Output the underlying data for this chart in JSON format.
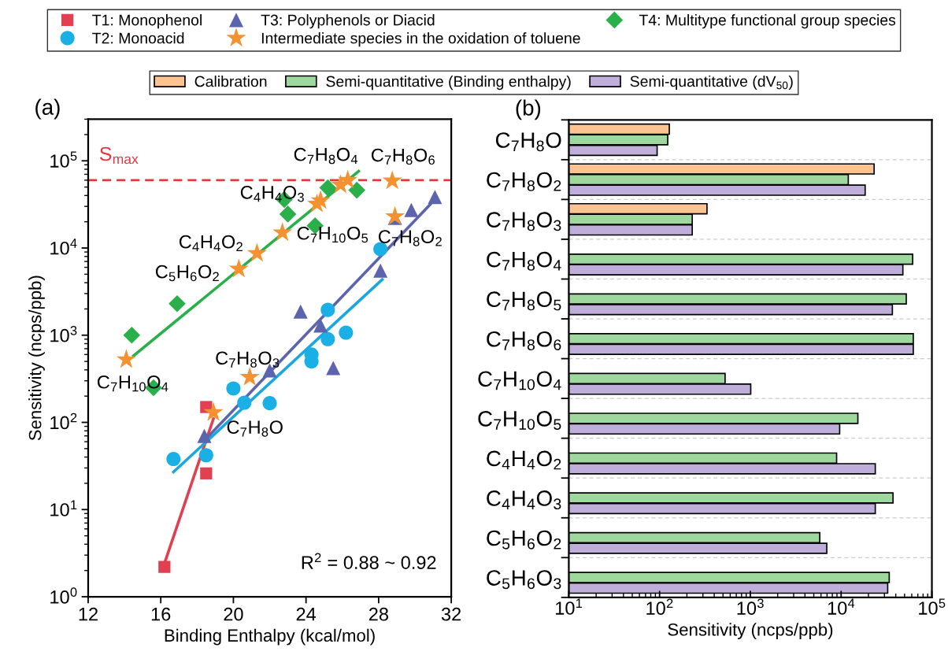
{
  "chart_data": [
    {
      "type": "scatter",
      "title": "(a)",
      "xlabel": "Binding Enthalpy (kcal/mol)",
      "ylabel": "Sensitivity (ncps/ppb)",
      "log": "y",
      "legend": "top",
      "xlim": [
        12,
        32
      ],
      "xticks": [
        12,
        16,
        20,
        24,
        28,
        32
      ],
      "ylim": [
        1,
        300000
      ],
      "yticks": [
        {
          "value": 1,
          "label": "10$^{0}$"
        },
        {
          "value": 10,
          "label": "10$^{1}$"
        },
        {
          "value": 100,
          "label": "10$^{2}$"
        },
        {
          "value": 1000,
          "label": "10$^{3}$"
        },
        {
          "value": 10000,
          "label": "10$^{4}$"
        },
        {
          "value": 100000,
          "label": "10$^{5}$"
        }
      ],
      "series": [
        {
          "name": "T1: Monophenol",
          "color": "#e0404f",
          "marker": "square",
          "x": [
            16.2,
            18.5,
            18.5
          ],
          "values": [
            2.2,
            26,
            150
          ]
        },
        {
          "name": "T2: Monoacid",
          "color": "#1ab0e6",
          "marker": "circle",
          "x": [
            16.7,
            18.5,
            20.0,
            20.6,
            22.0,
            24.3,
            24.3,
            25.2,
            26.2,
            25.2,
            28.1
          ],
          "values": [
            38,
            42,
            245,
            168,
            166,
            600,
            500,
            900,
            1070,
            1950,
            9700
          ]
        },
        {
          "name": "T3: Polyphenols or Diacid",
          "color": "#5b64ad",
          "marker": "triangle",
          "x": [
            18.4,
            22.0,
            23.7,
            24.8,
            25.5,
            28.1,
            28.9,
            29.8,
            31.1
          ],
          "values": [
            70,
            395,
            1870,
            1290,
            420,
            5500,
            22200,
            27300,
            38500
          ]
        },
        {
          "name": "Intermediate species in the oxidation of toluene",
          "color": "#f5922f",
          "marker": "star",
          "x": [
            14.1,
            18.9,
            20.9,
            20.3,
            21.3,
            22.7,
            24.6,
            24.8,
            25.9,
            26.3,
            28.75,
            28.9
          ],
          "values": [
            525,
            130,
            330,
            5750,
            8700,
            15000,
            32000,
            35000,
            53000,
            60000,
            59000,
            23000
          ]
        },
        {
          "name": "T4: Multitype functional group species",
          "color": "#2ab04a",
          "marker": "diamond",
          "x": [
            14.4,
            16.9,
            15.6,
            22.8,
            23.0,
            24.5,
            25.2,
            26.8
          ],
          "values": [
            1000,
            2300,
            250,
            36000,
            24500,
            18000,
            49000,
            46000
          ]
        },
        {
          "type": "line",
          "color": "#e0404f",
          "x": [
            16.2,
            18.9
          ],
          "values": [
            2.4,
            110
          ]
        },
        {
          "type": "line",
          "color": "#1aa7e0",
          "x": [
            16.7,
            28.2
          ],
          "values": [
            27,
            4350
          ]
        },
        {
          "type": "line",
          "color": "#5b64ad",
          "x": [
            18.5,
            30.9
          ],
          "values": [
            65,
            32500
          ]
        },
        {
          "type": "line",
          "color": "#2ab04a",
          "x": [
            14.5,
            26.9
          ],
          "values": [
            580,
            76000
          ]
        }
      ],
      "ref_lines": [
        {
          "axis": "y",
          "value": 60000,
          "label": "S$_{max}$",
          "color": "#e8343f",
          "line_style": "dashed"
        }
      ],
      "annotations": [
        {
          "text": "C$_{7}$H$_{8}$O$_{4}$",
          "x": 26.3,
          "y": 60000
        },
        {
          "text": "C$_{7}$H$_{8}$O$_{6}$",
          "x": 28.75,
          "y": 59000
        },
        {
          "text": "C$_{4}$H$_{4}$O$_{3}$",
          "x": 24.8,
          "y": 35000
        },
        {
          "text": "C$_{7}$H$_{10}$O$_{5}$",
          "x": 22.7,
          "y": 15000
        },
        {
          "text": "C$_{7}$H$_{8}$O$_{2}$",
          "x": 28.9,
          "y": 23000
        },
        {
          "text": "C$_{4}$H$_{4}$O$_{2}$",
          "x": 21.3,
          "y": 8700
        },
        {
          "text": "C$_{5}$H$_{6}$O$_{2}$",
          "x": 20.3,
          "y": 5750
        },
        {
          "text": "C$_{7}$H$_{10}$O$_{4}$",
          "x": 14.1,
          "y": 525
        },
        {
          "text": "C$_{7}$H$_{8}$O$_{3}$",
          "x": 20.9,
          "y": 330
        },
        {
          "text": "C$_{7}$H$_{8}$O",
          "x": 18.9,
          "y": 130
        },
        "R$^{2}$ = 0.88 ~ 0.92"
      ]
    },
    {
      "type": "bar",
      "orientation": "horizontal",
      "title": "(b)",
      "xlabel": "Sensitivity (ncps/ppb)",
      "log": "x",
      "legend": "top",
      "grid": "y",
      "xlim": [
        10,
        100000
      ],
      "xticks": [
        {
          "value": 10,
          "label": "10$^{1}$"
        },
        {
          "value": 100,
          "label": "10$^{2}$"
        },
        {
          "value": 1000,
          "label": "10$^{3}$"
        },
        {
          "value": 10000,
          "label": "10$^{4}$"
        },
        {
          "value": 100000,
          "label": "10$^{5}$"
        }
      ],
      "categories": [
        "C$_{7}$H$_{8}$O",
        "C$_{7}$H$_{8}$O$_{2}$",
        "C$_{7}$H$_{8}$O$_{3}$",
        "C$_{7}$H$_{8}$O$_{4}$",
        "C$_{7}$H$_{8}$O$_{5}$",
        "C$_{7}$H$_{8}$O$_{6}$",
        "C$_{7}$H$_{10}$O$_{4}$",
        "C$_{7}$H$_{10}$O$_{5}$",
        "C$_{4}$H$_{4}$O$_{2}$",
        "C$_{4}$H$_{4}$O$_{3}$",
        "C$_{5}$H$_{6}$O$_{2}$",
        "C$_{5}$H$_{6}$O$_{3}$"
      ],
      "series": [
        {
          "name": "Calibration",
          "color": "#fdc391",
          "values": [
            128,
            23100,
            333,
            null,
            null,
            null,
            null,
            null,
            null,
            null,
            null,
            null
          ]
        },
        {
          "name": "Semi-quantitative (Binding enthalpy)",
          "color": "#9ed89e",
          "values": [
            123,
            12000,
            229,
            61400,
            52200,
            62400,
            527,
            15300,
            8920,
            37300,
            5820,
            33900
          ]
        },
        {
          "name": "Semi-quantitative (dV$_{50}$)",
          "color": "#bfaed9",
          "values": [
            94,
            18400,
            229,
            47900,
            36700,
            62400,
            1010,
            9640,
            23800,
            23800,
            6950,
            32600
          ]
        }
      ]
    }
  ]
}
